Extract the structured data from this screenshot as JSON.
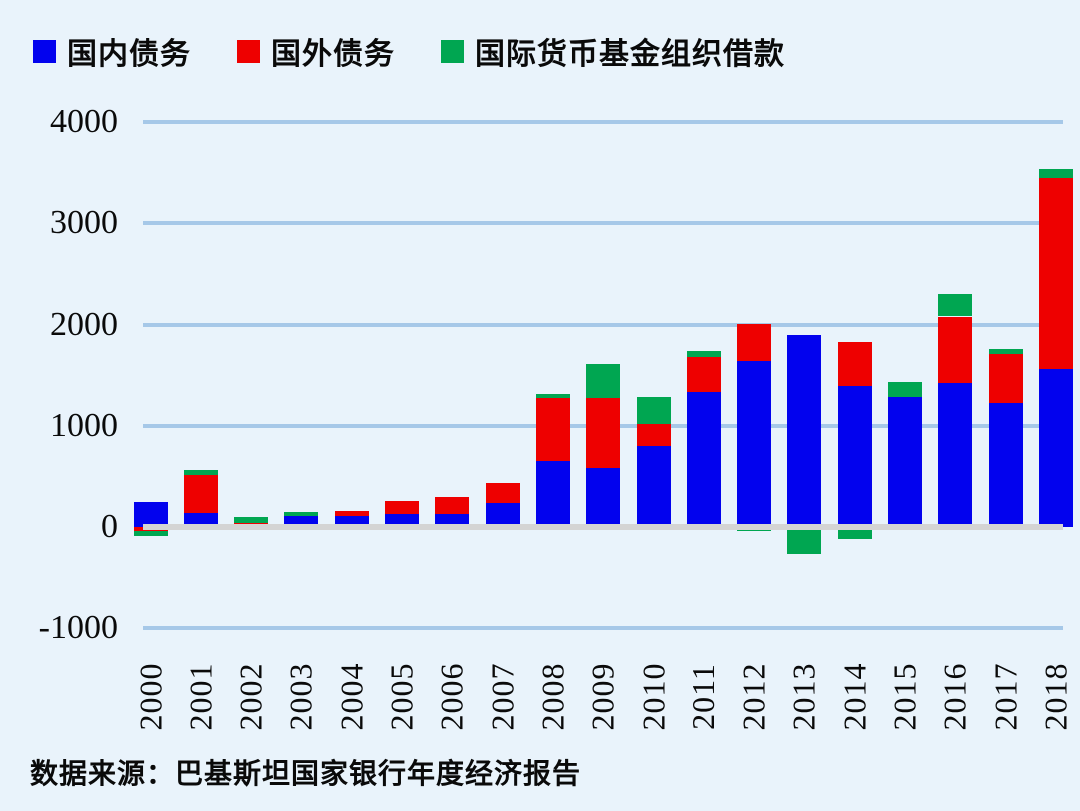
{
  "legend": [
    {
      "label": "国内债务",
      "color": "#0202ee"
    },
    {
      "label": "国外债务",
      "color": "#ee0000"
    },
    {
      "label": "国际货币基金组织借款",
      "color": "#00a651"
    }
  ],
  "y_axis": {
    "ticks": [
      {
        "label": "4000",
        "value": 4000
      },
      {
        "label": "3000",
        "value": 3000
      },
      {
        "label": "2000",
        "value": 2000
      },
      {
        "label": "1000",
        "value": 1000
      },
      {
        "label": "0",
        "value": 0
      },
      {
        "label": "-1000",
        "value": -1000
      }
    ]
  },
  "source_note": "数据来源：巴基斯坦国家银行年度经济报告",
  "chart_data": {
    "type": "bar",
    "stacked": true,
    "categories": [
      "2000",
      "2001",
      "2002",
      "2003",
      "2004",
      "2005",
      "2006",
      "2007",
      "2008",
      "2009",
      "2010",
      "2011",
      "2012",
      "2013",
      "2014",
      "2015",
      "2016",
      "2017",
      "2018"
    ],
    "series": [
      {
        "name": "国内债务",
        "color": "#0202ee",
        "values": [
          250,
          140,
          0,
          110,
          110,
          130,
          125,
          240,
          650,
          580,
          800,
          1330,
          1640,
          1900,
          1390,
          1280,
          1420,
          1230,
          1560
        ]
      },
      {
        "name": "国外债务",
        "color": "#ee0000",
        "values": [
          -40,
          370,
          40,
          0,
          45,
          130,
          170,
          190,
          620,
          690,
          220,
          350,
          370,
          0,
          440,
          0,
          660,
          480,
          1890
        ]
      },
      {
        "name": "国际货币基金组织借款",
        "color": "#00a651",
        "values": [
          -50,
          50,
          55,
          40,
          0,
          0,
          0,
          0,
          40,
          340,
          260,
          60,
          -40,
          -270,
          -120,
          150,
          220,
          50,
          90
        ]
      }
    ],
    "ylim": [
      -1000,
      4000
    ],
    "gridline_values": [
      4000,
      3000,
      2000,
      1000,
      -1000
    ],
    "zero_line": true,
    "legend_position": "top-left",
    "grid": true
  }
}
